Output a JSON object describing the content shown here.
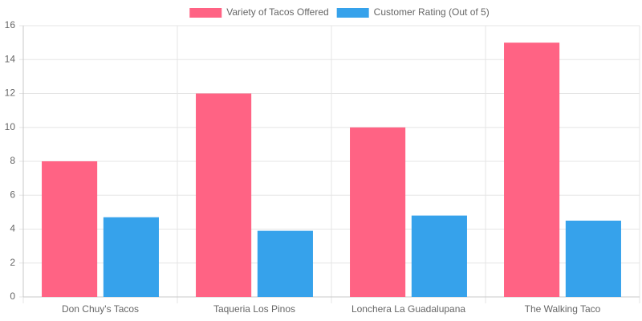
{
  "chart_data": {
    "type": "bar",
    "categories": [
      "Don Chuy's Tacos",
      "Taqueria Los Pinos",
      "Lonchera La Guadalupana",
      "The Walking Taco"
    ],
    "series": [
      {
        "name": "Variety of Tacos Offered",
        "color": "#ff6384",
        "values": [
          8,
          12,
          10,
          15
        ]
      },
      {
        "name": "Customer Rating (Out of 5)",
        "color": "#36a2eb",
        "values": [
          4.7,
          3.9,
          4.8,
          4.5
        ]
      }
    ],
    "ylim": [
      0,
      16
    ],
    "yticks": [
      0,
      2,
      4,
      6,
      8,
      10,
      12,
      14,
      16
    ],
    "grid": true,
    "legend": "top"
  }
}
